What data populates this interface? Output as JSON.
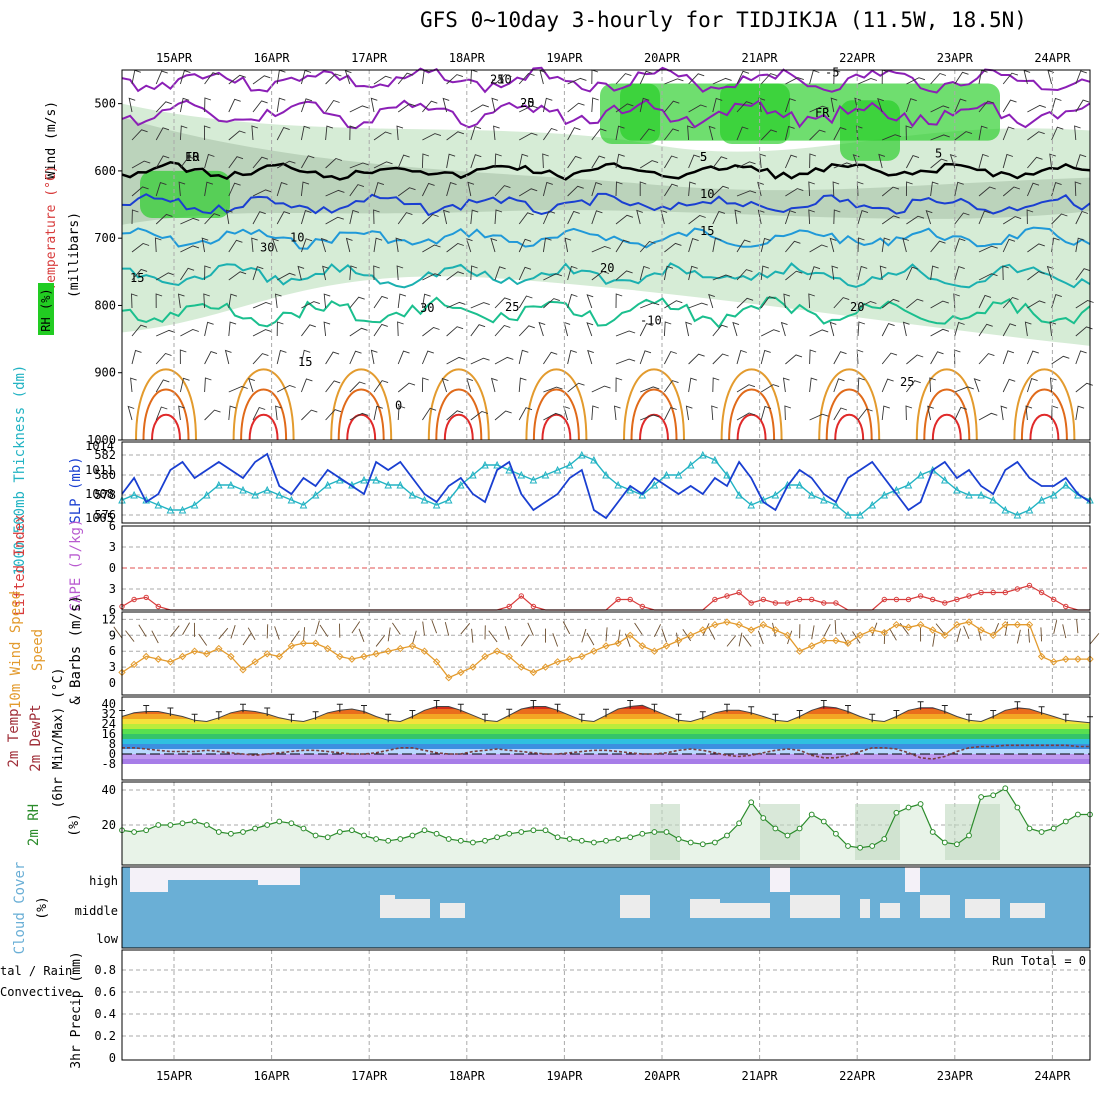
{
  "title": "GFS 0~10day 3-hourly for TIDJIKJA (11.5W, 18.5N)",
  "colors": {
    "rh_dark": "#22cc22",
    "rh_light": "#b5dcb5",
    "slp": "#1a3fd1",
    "thickness": "#22b3c3",
    "lifted_index": "#d83c3c",
    "wind10m": "#e39b2e",
    "rh2m": "#2c8c2c",
    "cloud": "#6aafd6",
    "cloud_clear": "#ececec"
  },
  "labels": {
    "wind_ms": "Wind (m/s)",
    "temperature": "Temperature (°C)",
    "rh_pct": "RH (%)",
    "millibars": "(millibars)",
    "thickness": "1000-500mb Thickness (dm)",
    "slp": "SLP (mb)",
    "lifted_index": "Lifted Index",
    "cape": "CAPE (J/kg)",
    "wind10_speed": "10m Wind Speed",
    "wind10_barbs": "& Barbs (m/s)",
    "temp2m": "2m Temp",
    "dewpt2m": "2m DewPt",
    "minmax6h": "(6hr Min/Max) (°C)",
    "rh2m": "2m RH",
    "rh2m_unit": "(%)",
    "cloud_cover": "Cloud Cover",
    "cloud_unit": "(%)",
    "cloud_high": "high",
    "cloud_middle": "middle",
    "cloud_low": "low",
    "precip_total": "tal / Rain",
    "precip_conv": "Convective",
    "precip_3hr": "3hr Precip (mm)",
    "run_total": "Run Total = 0"
  },
  "chart_data": [
    {
      "type": "heatmap",
      "panel": "upper-air cross-section",
      "x_ticks": [
        "15APR",
        "16APR",
        "17APR",
        "18APR",
        "19APR",
        "20APR",
        "21APR",
        "22APR",
        "23APR",
        "24APR"
      ],
      "y_ticks": [
        500,
        600,
        700,
        800,
        900,
        1000
      ],
      "ylim": [
        1000,
        450
      ],
      "ylabel": "(millibars)",
      "contour_labels": [
        "-10",
        "-5",
        "FR",
        "5",
        "10",
        "15",
        "20",
        "25",
        "-10",
        "-5",
        "FR",
        "5",
        "10",
        "15",
        "20",
        "25",
        "0",
        "30",
        "30",
        "15",
        "25",
        "20",
        "10",
        "5"
      ]
    },
    {
      "type": "line",
      "panel": "SLP and 1000-500mb thickness",
      "y_ticks_left": [
        576,
        578,
        580,
        582
      ],
      "y_ticks_right": [
        1005,
        1008,
        1011,
        1014
      ],
      "series": [
        {
          "name": "SLP (mb)",
          "values": [
            1008,
            1010,
            1007,
            1008,
            1011,
            1012,
            1010,
            1011,
            1012,
            1011,
            1010,
            1012,
            1013,
            1009,
            1008,
            1010,
            1009,
            1011,
            1010,
            1009,
            1008,
            1012,
            1011,
            1012,
            1010,
            1008,
            1007,
            1009,
            1010,
            1008,
            1007,
            1011,
            1012,
            1008,
            1006,
            1007,
            1008,
            1010,
            1011,
            1006,
            1005,
            1007,
            1009,
            1008,
            1010,
            1009,
            1008,
            1009,
            1008,
            1010,
            1009,
            1012,
            1010,
            1007,
            1006,
            1009,
            1011,
            1010,
            1008,
            1007,
            1010,
            1011,
            1012,
            1010,
            1008,
            1006,
            1007,
            1011,
            1012,
            1010,
            1011,
            1009,
            1008,
            1011,
            1012,
            1010,
            1009,
            1009,
            1010,
            1008,
            1007
          ]
        },
        {
          "name": "1000-500mb Thickness (dm)",
          "values": [
            577.5,
            578,
            577.5,
            577,
            576.5,
            576.5,
            577,
            578,
            579,
            579,
            578.5,
            578,
            578.5,
            578,
            577.5,
            577,
            578,
            579,
            579.5,
            579,
            579.5,
            579.5,
            579,
            579,
            578,
            577.5,
            577,
            577.5,
            579,
            580,
            581,
            581,
            580.5,
            580,
            579.5,
            580,
            580.5,
            581,
            582,
            581.5,
            580,
            579,
            578.5,
            578,
            579,
            580,
            580,
            581,
            582,
            581.5,
            580,
            578,
            577,
            577.5,
            578,
            579,
            579,
            578,
            577.5,
            577,
            576,
            576,
            577,
            578,
            578.5,
            579,
            580,
            580.5,
            579.5,
            578.5,
            578,
            578,
            577.5,
            576.5,
            576,
            576.5,
            577.5,
            578,
            579,
            578,
            577.5
          ]
        }
      ]
    },
    {
      "type": "line",
      "panel": "CAPE and Lifted Index",
      "y_ticks": [
        "6",
        "3",
        "0",
        "3",
        "6"
      ],
      "series": [
        {
          "name": "Lifted Index",
          "values": [
            5.5,
            4.5,
            4.2,
            5.5,
            6.5,
            6.5,
            6.5,
            6.5,
            6.5,
            6.5,
            6.5,
            6.5,
            6.5,
            6.5,
            6.5,
            6.5,
            6.5,
            6.5,
            6.5,
            6.5,
            6.5,
            6.5,
            6.5,
            6.5,
            6.5,
            6.5,
            6.5,
            6.5,
            6.5,
            6.5,
            6.5,
            6.5,
            5.5,
            4.0,
            5.5,
            6.5,
            6.5,
            6.5,
            6.5,
            6.5,
            6.5,
            4.5,
            4.5,
            5.5,
            6.5,
            6.5,
            6.5,
            6.5,
            6.5,
            4.5,
            4.0,
            3.5,
            5.0,
            4.5,
            5.0,
            5.0,
            4.5,
            4.5,
            5.0,
            5.0,
            6.5,
            6.5,
            6.5,
            4.5,
            4.5,
            4.5,
            4.0,
            4.5,
            5.0,
            4.5,
            4.0,
            3.5,
            3.5,
            3.5,
            3.0,
            2.5,
            3.5,
            4.5,
            5.5,
            6.5,
            6.5
          ]
        }
      ]
    },
    {
      "type": "line",
      "panel": "10m wind speed",
      "y_ticks": [
        0,
        3,
        6,
        9,
        12
      ],
      "series": [
        {
          "name": "10m Wind Speed",
          "values": [
            2,
            3.5,
            5,
            4.5,
            4,
            5,
            6,
            5.5,
            6.5,
            5,
            2.5,
            4,
            5.5,
            5,
            7,
            7.5,
            7.5,
            6.5,
            5,
            4.5,
            5,
            5.5,
            6,
            6.5,
            7,
            6,
            4,
            1,
            2,
            3,
            5,
            6,
            5,
            3,
            2,
            3,
            4,
            4.5,
            5,
            6,
            7,
            7.5,
            9,
            7,
            6,
            7,
            8,
            9,
            10,
            11,
            11.5,
            11,
            10,
            11,
            10,
            9,
            6,
            7,
            8,
            8,
            7.5,
            9,
            10,
            9.5,
            11,
            10.5,
            11,
            10,
            9,
            11,
            11.5,
            10,
            9,
            11,
            11,
            11,
            5,
            4,
            4.5,
            4.5,
            4.5
          ]
        }
      ]
    },
    {
      "type": "area",
      "panel": "2m temperature and dew point",
      "y_ticks": [
        40,
        32,
        24,
        16,
        8,
        0,
        -8
      ],
      "series": [
        {
          "name": "2m Temp",
          "values": [
            30,
            33,
            34,
            34,
            32,
            30,
            27,
            26,
            29,
            33,
            35,
            34,
            32,
            29,
            27,
            26,
            29,
            33,
            35,
            36,
            34,
            30,
            27,
            26,
            30,
            35,
            38,
            38,
            35,
            31,
            27,
            26,
            31,
            36,
            38,
            38,
            35,
            31,
            27,
            26,
            31,
            36,
            38,
            39,
            35,
            31,
            27,
            26,
            29,
            33,
            35,
            35,
            33,
            30,
            27,
            26,
            30,
            35,
            38,
            37,
            34,
            30,
            27,
            26,
            30,
            35,
            37,
            37,
            34,
            30,
            27,
            26,
            30,
            35,
            37,
            36,
            33,
            30,
            27,
            26,
            25
          ]
        },
        {
          "name": "2m DewPt",
          "values": [
            5,
            5,
            4,
            3,
            2,
            2,
            2,
            3,
            2,
            1,
            0,
            -1,
            0,
            1,
            2,
            3,
            3,
            2,
            1,
            0,
            0,
            1,
            3,
            5,
            5,
            3,
            1,
            0,
            0,
            2,
            3,
            4,
            3,
            2,
            1,
            0,
            0,
            1,
            2,
            3,
            3,
            2,
            1,
            0,
            0,
            1,
            3,
            4,
            3,
            1,
            -1,
            -2,
            -1,
            1,
            3,
            4,
            3,
            -1,
            -3,
            -3,
            -1,
            2,
            5,
            5,
            4,
            1,
            -3,
            -4,
            -2,
            2,
            5,
            6,
            6,
            7,
            7,
            7,
            7,
            7,
            7,
            6,
            6
          ]
        }
      ]
    },
    {
      "type": "area",
      "panel": "2m relative humidity",
      "y_ticks": [
        20,
        40
      ],
      "series": [
        {
          "name": "2m RH",
          "values": [
            17,
            16,
            17,
            20,
            20,
            21,
            22,
            20,
            16,
            15,
            16,
            18,
            20,
            22,
            21,
            18,
            14,
            13,
            16,
            17,
            14,
            12,
            11,
            12,
            14,
            17,
            15,
            12,
            11,
            10,
            11,
            13,
            15,
            16,
            17,
            17,
            13,
            12,
            11,
            10,
            11,
            12,
            13,
            15,
            16,
            16,
            12,
            10,
            9,
            10,
            14,
            21,
            33,
            24,
            18,
            14,
            18,
            26,
            22,
            15,
            8,
            7,
            8,
            12,
            27,
            30,
            32,
            16,
            10,
            9,
            14,
            36,
            37,
            41,
            30,
            18,
            16,
            18,
            22,
            26,
            26
          ]
        }
      ]
    },
    {
      "type": "bar",
      "panel": "cloud cover",
      "categories": [
        "high",
        "middle",
        "low"
      ]
    },
    {
      "type": "bar",
      "panel": "3hr precipitation",
      "y_ticks": [
        0,
        0.2,
        0.4,
        0.6,
        0.8
      ],
      "run_total": "Run Total = 0"
    }
  ]
}
